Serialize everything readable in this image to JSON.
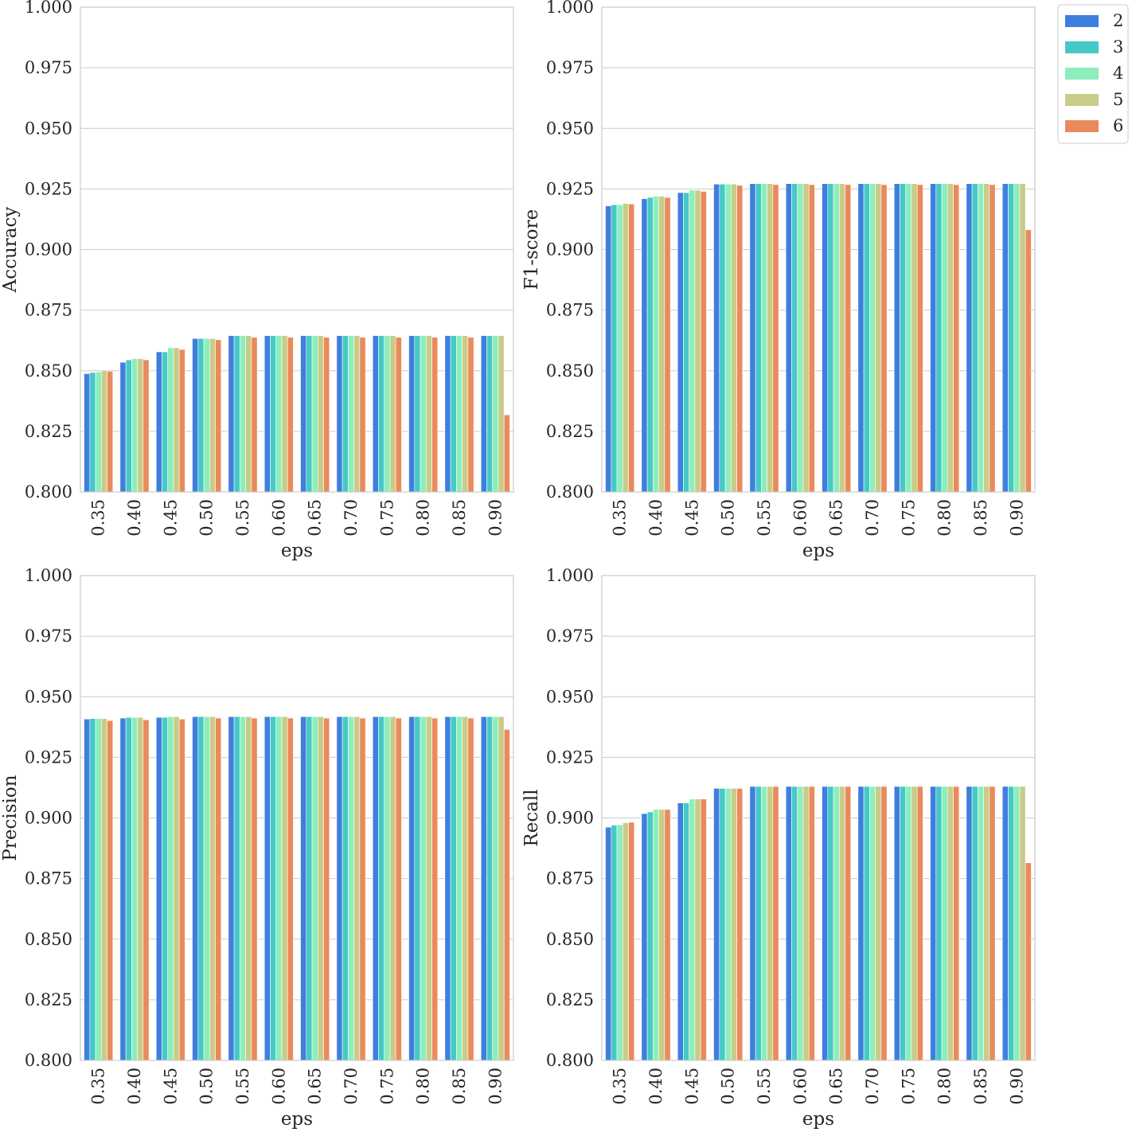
{
  "legend": {
    "placement": "upper-right-outside",
    "entries": [
      {
        "label": "2",
        "color": "#3e7fde"
      },
      {
        "label": "3",
        "color": "#45c9c6"
      },
      {
        "label": "4",
        "color": "#8eeebb"
      },
      {
        "label": "5",
        "color": "#c9cc88"
      },
      {
        "label": "6",
        "color": "#ea8a5c"
      }
    ]
  },
  "chart_data": [
    {
      "type": "bar",
      "xlabel": "eps",
      "ylabel": "Accuracy",
      "ylim": [
        0.8,
        1.0
      ],
      "yticks": [
        "0.800",
        "0.825",
        "0.850",
        "0.875",
        "0.900",
        "0.925",
        "0.950",
        "0.975",
        "1.000"
      ],
      "grid": true,
      "categories": [
        "0.35",
        "0.40",
        "0.45",
        "0.50",
        "0.55",
        "0.60",
        "0.65",
        "0.70",
        "0.75",
        "0.80",
        "0.85",
        "0.90"
      ],
      "series": [
        {
          "name": "2",
          "values": [
            0.8488,
            0.8535,
            0.8578,
            0.8633,
            0.8645,
            0.8645,
            0.8645,
            0.8645,
            0.8645,
            0.8645,
            0.8645,
            0.8645
          ]
        },
        {
          "name": "3",
          "values": [
            0.8493,
            0.8545,
            0.8578,
            0.8633,
            0.8645,
            0.8645,
            0.8645,
            0.8645,
            0.8645,
            0.8645,
            0.8645,
            0.8645
          ]
        },
        {
          "name": "4",
          "values": [
            0.8495,
            0.855,
            0.8595,
            0.8633,
            0.8645,
            0.8645,
            0.8645,
            0.8645,
            0.8645,
            0.8645,
            0.8645,
            0.8645
          ]
        },
        {
          "name": "5",
          "values": [
            0.8502,
            0.855,
            0.8595,
            0.8633,
            0.8645,
            0.8645,
            0.8645,
            0.8645,
            0.8645,
            0.8645,
            0.8645,
            0.8645
          ]
        },
        {
          "name": "6",
          "values": [
            0.8498,
            0.8545,
            0.8588,
            0.8628,
            0.8638,
            0.8638,
            0.8638,
            0.8638,
            0.8638,
            0.8638,
            0.8638,
            0.8318
          ]
        }
      ]
    },
    {
      "type": "bar",
      "xlabel": "eps",
      "ylabel": "F1-score",
      "ylim": [
        0.8,
        1.0
      ],
      "yticks": [
        "0.800",
        "0.825",
        "0.850",
        "0.875",
        "0.900",
        "0.925",
        "0.950",
        "0.975",
        "1.000"
      ],
      "grid": true,
      "categories": [
        "0.35",
        "0.40",
        "0.45",
        "0.50",
        "0.55",
        "0.60",
        "0.65",
        "0.70",
        "0.75",
        "0.80",
        "0.85",
        "0.90"
      ],
      "series": [
        {
          "name": "2",
          "values": [
            0.918,
            0.921,
            0.9235,
            0.927,
            0.9272,
            0.9272,
            0.9272,
            0.9272,
            0.9272,
            0.9272,
            0.9272,
            0.9272
          ]
        },
        {
          "name": "3",
          "values": [
            0.9185,
            0.9215,
            0.9235,
            0.927,
            0.9272,
            0.9272,
            0.9272,
            0.9272,
            0.9272,
            0.9272,
            0.9272,
            0.9272
          ]
        },
        {
          "name": "4",
          "values": [
            0.9185,
            0.922,
            0.9245,
            0.927,
            0.9272,
            0.9272,
            0.9272,
            0.9272,
            0.9272,
            0.9272,
            0.9272,
            0.9272
          ]
        },
        {
          "name": "5",
          "values": [
            0.919,
            0.922,
            0.9245,
            0.927,
            0.9272,
            0.9272,
            0.9272,
            0.9272,
            0.9272,
            0.9272,
            0.9272,
            0.9272
          ]
        },
        {
          "name": "6",
          "values": [
            0.9188,
            0.9215,
            0.924,
            0.9265,
            0.9268,
            0.9268,
            0.9268,
            0.9268,
            0.9268,
            0.9268,
            0.9268,
            0.9082
          ]
        }
      ]
    },
    {
      "type": "bar",
      "xlabel": "eps",
      "ylabel": "Precision",
      "ylim": [
        0.8,
        1.0
      ],
      "yticks": [
        "0.800",
        "0.825",
        "0.850",
        "0.875",
        "0.900",
        "0.925",
        "0.950",
        "0.975",
        "1.000"
      ],
      "grid": true,
      "categories": [
        "0.35",
        "0.40",
        "0.45",
        "0.50",
        "0.55",
        "0.60",
        "0.65",
        "0.70",
        "0.75",
        "0.80",
        "0.85",
        "0.90"
      ],
      "series": [
        {
          "name": "2",
          "values": [
            0.9408,
            0.9412,
            0.9415,
            0.9418,
            0.9418,
            0.9418,
            0.9418,
            0.9418,
            0.9418,
            0.9418,
            0.9418,
            0.9418
          ]
        },
        {
          "name": "3",
          "values": [
            0.941,
            0.9415,
            0.9415,
            0.9418,
            0.9418,
            0.9418,
            0.9418,
            0.9418,
            0.9418,
            0.9418,
            0.9418,
            0.9418
          ]
        },
        {
          "name": "4",
          "values": [
            0.941,
            0.9415,
            0.9418,
            0.9418,
            0.9418,
            0.9418,
            0.9418,
            0.9418,
            0.9418,
            0.9418,
            0.9418,
            0.9418
          ]
        },
        {
          "name": "5",
          "values": [
            0.941,
            0.9415,
            0.9418,
            0.9418,
            0.9418,
            0.9418,
            0.9418,
            0.9418,
            0.9418,
            0.9418,
            0.9418,
            0.9418
          ]
        },
        {
          "name": "6",
          "values": [
            0.9402,
            0.9405,
            0.9408,
            0.9412,
            0.9412,
            0.9412,
            0.9412,
            0.9412,
            0.9412,
            0.9412,
            0.9412,
            0.9365
          ]
        }
      ]
    },
    {
      "type": "bar",
      "xlabel": "eps",
      "ylabel": "Recall",
      "ylim": [
        0.8,
        1.0
      ],
      "yticks": [
        "0.800",
        "0.825",
        "0.850",
        "0.875",
        "0.900",
        "0.925",
        "0.950",
        "0.975",
        "1.000"
      ],
      "grid": true,
      "categories": [
        "0.35",
        "0.40",
        "0.45",
        "0.50",
        "0.55",
        "0.60",
        "0.65",
        "0.70",
        "0.75",
        "0.80",
        "0.85",
        "0.90"
      ],
      "series": [
        {
          "name": "2",
          "values": [
            0.8962,
            0.9018,
            0.9062,
            0.9122,
            0.913,
            0.913,
            0.913,
            0.913,
            0.913,
            0.913,
            0.913,
            0.913
          ]
        },
        {
          "name": "3",
          "values": [
            0.897,
            0.9025,
            0.9062,
            0.9122,
            0.913,
            0.913,
            0.913,
            0.913,
            0.913,
            0.913,
            0.913,
            0.913
          ]
        },
        {
          "name": "4",
          "values": [
            0.8972,
            0.9035,
            0.9078,
            0.9122,
            0.913,
            0.913,
            0.913,
            0.913,
            0.913,
            0.913,
            0.913,
            0.913
          ]
        },
        {
          "name": "5",
          "values": [
            0.898,
            0.9035,
            0.9078,
            0.9122,
            0.913,
            0.913,
            0.913,
            0.913,
            0.913,
            0.913,
            0.913,
            0.913
          ]
        },
        {
          "name": "6",
          "values": [
            0.8982,
            0.9035,
            0.9078,
            0.9122,
            0.913,
            0.913,
            0.913,
            0.913,
            0.913,
            0.913,
            0.913,
            0.8815
          ]
        }
      ]
    }
  ]
}
